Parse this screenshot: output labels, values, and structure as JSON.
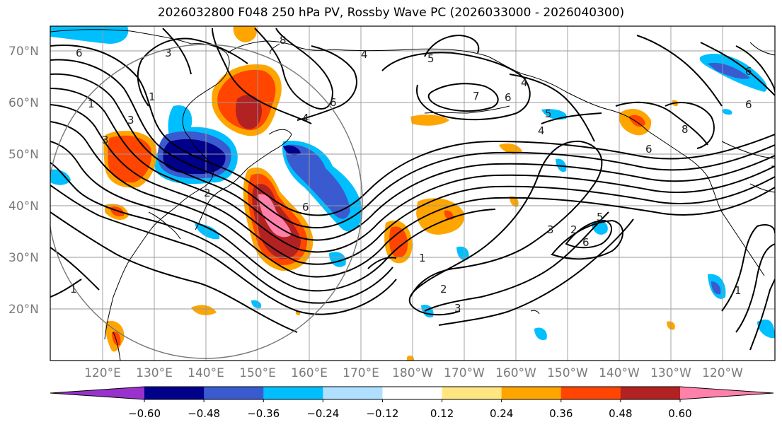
{
  "title": "2026032800 F048 250 hPa PV, Rossby Wave PC (2026033000 - 2026040300)",
  "lat_labels": [
    "70°N",
    "60°N",
    "50°N",
    "40°N",
    "30°N",
    "20°N"
  ],
  "lon_labels": [
    "120°E",
    "130°E",
    "140°E",
    "150°E",
    "160°E",
    "170°E",
    "180°W",
    "170°W",
    "160°W",
    "150°W",
    "140°W",
    "130°W",
    "120°W"
  ],
  "colorbar": {
    "ticks": [
      "−0.60",
      "−0.48",
      "−0.36",
      "−0.24",
      "−0.12",
      "0.12",
      "0.24",
      "0.36",
      "0.48",
      "0.60"
    ],
    "colors": [
      "#9932cc",
      "#00008b",
      "#3a5bd0",
      "#00bfff",
      "#b0e0ff",
      "#ffffff",
      "#ffe680",
      "#ffa500",
      "#ff4500",
      "#b22222",
      "#ff80aa"
    ]
  },
  "contour_labels": [
    "6",
    "3",
    "1",
    "1",
    "3",
    "3",
    "8",
    "4",
    "5",
    "7",
    "6",
    "4",
    "5",
    "4",
    "6",
    "8",
    "6",
    "4",
    "6",
    "6",
    "2",
    "6",
    "1",
    "2",
    "3",
    "3",
    "2",
    "6",
    "5",
    "1",
    "1"
  ]
}
